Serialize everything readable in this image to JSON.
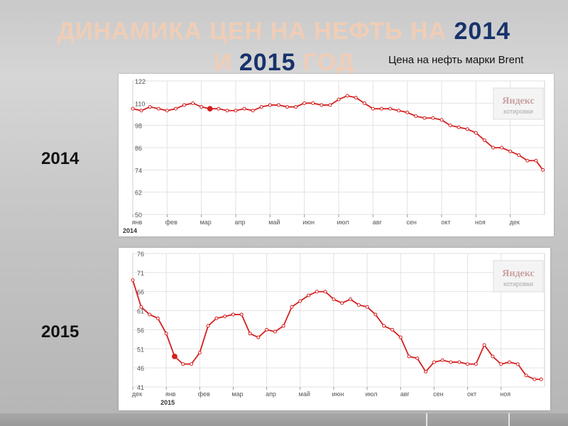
{
  "title": {
    "line1_light": "ДИНАМИКА ЦЕН НА НЕФТЬ НА ",
    "line1_dark": "2014",
    "line2_light_a": "И ",
    "line2_dark": "2015",
    "line2_light_b": " ГОД"
  },
  "subtitle": "Цена на нефть марки Brent",
  "year_labels": [
    "2014",
    "2015"
  ],
  "colors": {
    "title_light": "#f0cdb6",
    "title_dark": "#17326b",
    "line": "#d42020",
    "grid": "#e2e2e2"
  },
  "chart_data": [
    {
      "type": "line",
      "title": "2014",
      "watermark": {
        "brand": "Яндекс",
        "sub": "котировки"
      },
      "x_tick_labels": [
        "янв",
        "фев",
        "мар",
        "апр",
        "май",
        "июн",
        "июл",
        "авг",
        "сен",
        "окт",
        "ноя",
        "дек"
      ],
      "x_year_label": "2014",
      "y_ticks": [
        122,
        110,
        98,
        86,
        74,
        62,
        50
      ],
      "ylim": [
        50,
        122
      ],
      "x_range": [
        0,
        12
      ],
      "grid": true,
      "highlight_index": 9,
      "series": [
        {
          "x": [
            0,
            0.25,
            0.5,
            0.75,
            1.0,
            1.25,
            1.5,
            1.75,
            2.0,
            2.25,
            2.5,
            2.75,
            3.0,
            3.25,
            3.5,
            3.75,
            4.0,
            4.25,
            4.5,
            4.75,
            5.0,
            5.25,
            5.5,
            5.75,
            6.0,
            6.25,
            6.5,
            6.75,
            7.0,
            7.25,
            7.5,
            7.75,
            8.0,
            8.25,
            8.5,
            8.75,
            9.0,
            9.25,
            9.5,
            9.75,
            10.0,
            10.25,
            10.5,
            10.75,
            11.0,
            11.25,
            11.5,
            11.75,
            11.95
          ],
          "values": [
            107,
            106,
            108,
            107,
            106,
            107,
            109,
            110,
            108,
            107,
            107,
            106,
            106,
            107,
            106,
            108,
            109,
            109,
            108,
            108,
            110,
            110,
            109,
            109,
            112,
            114,
            113,
            110,
            107,
            107,
            107,
            106,
            105,
            103,
            102,
            102,
            101,
            98,
            97,
            96,
            94,
            90,
            86,
            86,
            84,
            82,
            79,
            79,
            74
          ]
        }
      ]
    },
    {
      "type": "line",
      "title": "2015",
      "watermark": {
        "brand": "Яндекс",
        "sub": "котировки"
      },
      "x_tick_labels": [
        "дек",
        "янв",
        "фев",
        "мар",
        "апр",
        "май",
        "июн",
        "июл",
        "авг",
        "сен",
        "окт",
        "ноя"
      ],
      "x_year_label": "2015",
      "y_ticks": [
        76,
        71,
        66,
        61,
        56,
        51,
        46,
        41
      ],
      "ylim": [
        41,
        76
      ],
      "x_range": [
        0,
        12.3
      ],
      "grid": true,
      "highlight_index": 5,
      "series": [
        {
          "x": [
            0.0,
            0.25,
            0.5,
            0.75,
            1.0,
            1.25,
            1.5,
            1.75,
            2.0,
            2.25,
            2.5,
            2.75,
            3.0,
            3.25,
            3.5,
            3.75,
            4.0,
            4.25,
            4.5,
            4.75,
            5.0,
            5.25,
            5.5,
            5.75,
            6.0,
            6.25,
            6.5,
            6.75,
            7.0,
            7.25,
            7.5,
            7.75,
            8.0,
            8.25,
            8.5,
            8.75,
            9.0,
            9.25,
            9.5,
            9.75,
            10.0,
            10.25,
            10.5,
            10.75,
            11.0,
            11.25,
            11.5,
            11.75,
            12.0,
            12.2
          ],
          "values": [
            69,
            62,
            60,
            59,
            55,
            49,
            47,
            47,
            50,
            57,
            59,
            59.5,
            60,
            60,
            55,
            54,
            56,
            55.5,
            57,
            62,
            63.5,
            65,
            66,
            66,
            64,
            63,
            64,
            62.5,
            62,
            60,
            57,
            56,
            54,
            49,
            48.5,
            45,
            47.5,
            48,
            47.5,
            47.5,
            47,
            47,
            52,
            49,
            47,
            47.5,
            47,
            44,
            43,
            43
          ]
        }
      ]
    }
  ]
}
